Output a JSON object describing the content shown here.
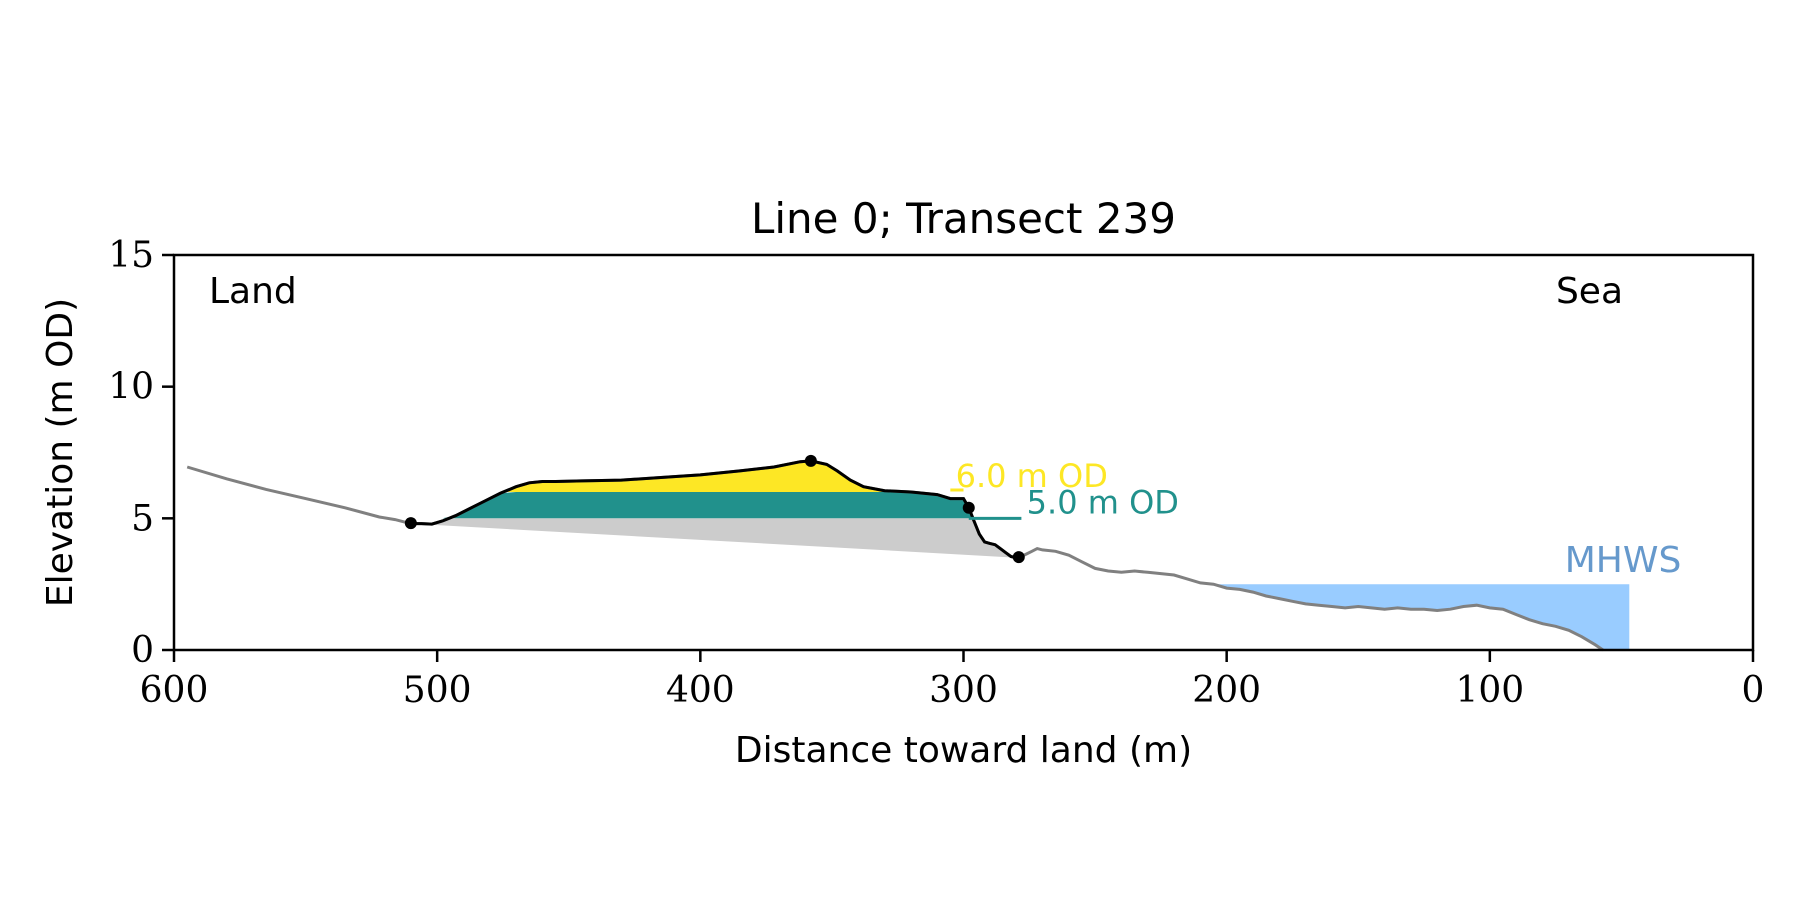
{
  "chart_data": {
    "type": "area",
    "title": "Line 0; Transect 239",
    "xlabel": "Distance toward land (m)",
    "ylabel": "Elevation (m OD)",
    "xlim": [
      600,
      0
    ],
    "ylim": [
      0,
      15
    ],
    "x_inverted": true,
    "grid": false,
    "xticks": [
      600,
      500,
      400,
      300,
      200,
      100,
      0
    ],
    "yticks": [
      0,
      5,
      10,
      15
    ],
    "corner_labels": {
      "left": "Land",
      "right": "Sea"
    },
    "threshold_levels": [
      {
        "label": "6.0 m OD",
        "elevation": 6.0,
        "color": "#fde725"
      },
      {
        "label": "5.0 m OD",
        "elevation": 5.0,
        "color": "#21918c"
      }
    ],
    "mhws": {
      "label": "MHWS",
      "elevation": 2.5,
      "x_end": 47,
      "color": "#99ccff",
      "label_color": "#6699cc"
    },
    "profile": {
      "x": [
        595,
        580,
        565,
        550,
        535,
        522,
        516,
        512,
        509,
        506,
        502,
        498,
        493,
        488,
        482,
        476,
        470,
        465,
        460,
        455,
        445,
        430,
        415,
        400,
        385,
        372,
        362,
        358,
        352,
        348,
        343,
        338,
        330,
        320,
        310,
        305,
        302,
        300,
        298,
        296,
        294,
        292,
        290,
        288,
        286,
        284,
        282,
        280,
        278,
        276,
        274,
        272,
        270,
        265,
        260,
        255,
        250,
        245,
        240,
        235,
        230,
        225,
        220,
        215,
        210,
        205,
        200,
        195,
        190,
        185,
        180,
        175,
        170,
        165,
        160,
        155,
        150,
        145,
        140,
        135,
        130,
        125,
        120,
        115,
        110,
        105,
        100,
        95,
        90,
        85,
        80,
        75,
        70,
        65,
        60,
        57
      ],
      "y": [
        6.95,
        6.5,
        6.1,
        5.75,
        5.4,
        5.05,
        4.95,
        4.85,
        4.8,
        4.8,
        4.78,
        4.9,
        5.1,
        5.35,
        5.65,
        5.95,
        6.2,
        6.35,
        6.4,
        6.4,
        6.42,
        6.45,
        6.55,
        6.65,
        6.8,
        6.95,
        7.15,
        7.18,
        7.05,
        6.8,
        6.45,
        6.2,
        6.05,
        6.0,
        5.9,
        5.75,
        5.75,
        5.75,
        5.4,
        4.9,
        4.4,
        4.1,
        4.05,
        4.0,
        3.85,
        3.7,
        3.55,
        3.5,
        3.55,
        3.65,
        3.75,
        3.85,
        3.8,
        3.75,
        3.6,
        3.35,
        3.1,
        3.0,
        2.95,
        3.0,
        2.95,
        2.9,
        2.85,
        2.7,
        2.55,
        2.5,
        2.35,
        2.3,
        2.2,
        2.05,
        1.95,
        1.85,
        1.75,
        1.7,
        1.65,
        1.6,
        1.65,
        1.6,
        1.55,
        1.6,
        1.55,
        1.55,
        1.5,
        1.55,
        1.65,
        1.7,
        1.6,
        1.55,
        1.35,
        1.15,
        1.0,
        0.9,
        0.75,
        0.5,
        0.2,
        0.0
      ]
    },
    "dune_start_x": 510,
    "dune_crest_x": 358,
    "dune_toe_x": 298,
    "dune_end_x": 279,
    "dune_base_y_start": 4.8,
    "dune_base_y_end": 3.5,
    "colors": {
      "profile": "#808080",
      "dune_line": "#000000",
      "base_fill": "#cccccc",
      "point": "#000000"
    }
  }
}
